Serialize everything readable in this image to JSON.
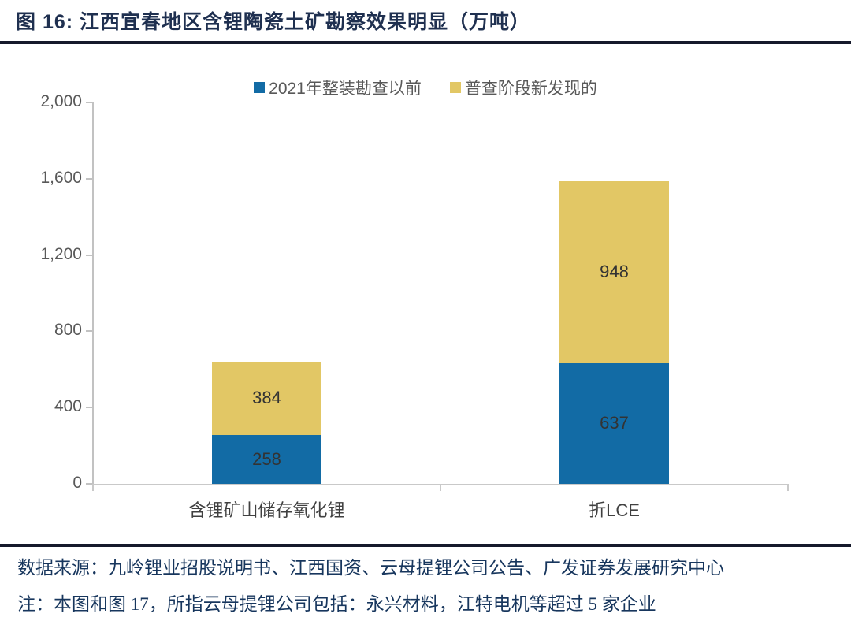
{
  "figure": {
    "title": "图 16:  江西宜春地区含锂陶瓷土矿勘察效果明显（万吨）",
    "source_note": "数据来源：九岭锂业招股说明书、江西国资、云母提锂公司公告、广发证券发展研究中心",
    "remark_note": "注：本图和图 17，所指云母提锂公司包括：永兴材料，江特电机等超过 5 家企业"
  },
  "chart_data": {
    "type": "bar",
    "stacked": true,
    "title": "江西宜春地区含锂陶瓷土矿勘察效果明显",
    "unit": "万吨",
    "categories": [
      "含锂矿山储存氧化锂",
      "折LCE"
    ],
    "series": [
      {
        "name": "2021年整装勘查以前",
        "color": "#126ba5",
        "values": [
          258,
          637
        ]
      },
      {
        "name": "普查阶段新发现的",
        "color": "#e2c765",
        "values": [
          384,
          948
        ]
      }
    ],
    "totals": [
      642,
      1585
    ],
    "ylim": [
      0,
      2000
    ],
    "yticks": [
      0,
      400,
      800,
      1200,
      1600,
      2000
    ],
    "ytick_labels": [
      "0",
      "400",
      "800",
      "1,200",
      "1,600",
      "2,000"
    ],
    "legend_position": "top-center",
    "grid": false,
    "data_labels": true
  }
}
